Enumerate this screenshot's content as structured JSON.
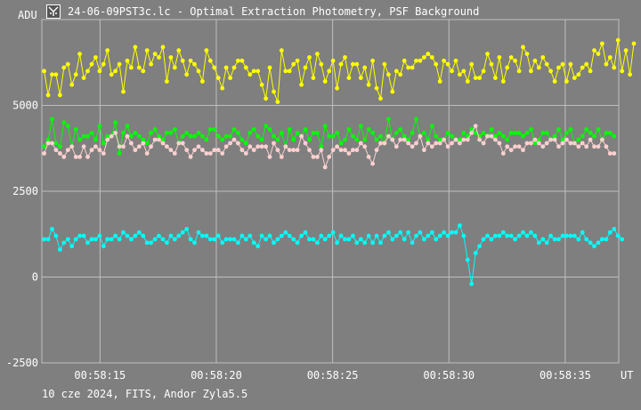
{
  "window": {
    "title": "24-06-09PST3c.lc - Optimal Extraction Photometry, PSF Background",
    "icon": "app-logo-icon"
  },
  "footer": {
    "text": "10 cze 2024, FITS, Andor Zyla5.5"
  },
  "colors": {
    "background": "#7f7f7f",
    "grid": "#bfbfbf",
    "text": "#ffffff",
    "series_yellow": "#ffff00",
    "series_green": "#00ff00",
    "series_pink": "#ffd0d0",
    "series_cyan": "#00ffff"
  },
  "chart_data": {
    "type": "line",
    "title": "24-06-09PST3c.lc - Optimal Extraction Photometry, PSF Background",
    "ylabel": "ADU",
    "xlabel": "UT",
    "ylim": [
      -2500,
      7500
    ],
    "xlim": [
      "00:58:12.5",
      "00:58:37.3"
    ],
    "yticks": [
      -2500,
      0,
      2500,
      5000
    ],
    "xticks": [
      "00:58:15",
      "00:58:20",
      "00:58:25",
      "00:58:30",
      "00:58:35"
    ],
    "grid": true,
    "x": {
      "start": "00:58:12.6",
      "end": "00:58:37.1",
      "count": 145
    },
    "series": [
      {
        "color": "#ffff00",
        "values": [
          6000,
          5300,
          5900,
          5900,
          5300,
          6100,
          6200,
          5600,
          5900,
          6500,
          5800,
          6000,
          6200,
          6400,
          6000,
          6200,
          6600,
          5900,
          6000,
          6200,
          5400,
          6300,
          6100,
          6700,
          6100,
          6000,
          6600,
          6200,
          6500,
          6400,
          6700,
          5700,
          6400,
          6100,
          6600,
          6300,
          5900,
          6300,
          6200,
          6000,
          5700,
          6600,
          6300,
          6100,
          5800,
          5500,
          6100,
          5800,
          6100,
          6300,
          6300,
          6100,
          5900,
          6000,
          6000,
          5600,
          5200,
          6100,
          5400,
          5100,
          6600,
          6000,
          6000,
          6200,
          6300,
          5600,
          6100,
          6400,
          5800,
          6500,
          6200,
          5700,
          6000,
          6300,
          5500,
          6200,
          6400,
          5800,
          6200,
          6200,
          5800,
          6100,
          5600,
          6300,
          5500,
          5200,
          6200,
          5900,
          5400,
          6000,
          5900,
          6300,
          6100,
          6100,
          6300,
          6300,
          6400,
          6500,
          6400,
          6200,
          5700,
          6300,
          6200,
          6000,
          6300,
          5900,
          6000,
          5700,
          6200,
          5800,
          5800,
          6000,
          6500,
          6200,
          5800,
          6400,
          5700,
          6100,
          6400,
          6300,
          6000,
          6700,
          6500,
          6000,
          6300,
          6100,
          6400,
          6200,
          6000,
          5700,
          6100,
          6200,
          5700,
          6200,
          5800,
          5900,
          6100,
          6200,
          6000,
          6600,
          6500,
          6800,
          6200,
          6400,
          6100,
          6900,
          6000,
          6600,
          5900,
          6800
        ]
      },
      {
        "color": "#00ff00",
        "values": [
          3800,
          4000,
          4600,
          3900,
          3800,
          4500,
          4400,
          3800,
          4300,
          4000,
          4100,
          4100,
          4200,
          4000,
          4400,
          3900,
          4100,
          4100,
          4500,
          3600,
          4200,
          4400,
          4100,
          4200,
          4100,
          4000,
          3900,
          4200,
          4300,
          4100,
          4000,
          4200,
          4200,
          4300,
          3900,
          4100,
          4200,
          4100,
          4100,
          4200,
          4100,
          4000,
          4300,
          4300,
          4100,
          4000,
          4100,
          4100,
          4300,
          4200,
          4000,
          3900,
          4200,
          4300,
          4100,
          4000,
          4400,
          4300,
          4100,
          4000,
          4200,
          3800,
          4300,
          4000,
          4200,
          4100,
          4300,
          4000,
          4200,
          4200,
          3800,
          4400,
          4100,
          4100,
          4200,
          3900,
          4000,
          4300,
          4100,
          4000,
          4400,
          4000,
          4300,
          4200,
          4000,
          4100,
          3900,
          4600,
          4000,
          4200,
          4300,
          4100,
          4000,
          4200,
          4600,
          4100,
          4200,
          4000,
          4400,
          4100,
          4000,
          4000,
          4200,
          4100,
          4000,
          4000,
          4200,
          4100,
          4300,
          4200,
          4100,
          4200,
          4100,
          4300,
          4100,
          4200,
          4100,
          4000,
          4200,
          4200,
          4200,
          4100,
          4200,
          4300,
          3900,
          4000,
          4200,
          4200,
          4000,
          4100,
          4300,
          4000,
          4200,
          4300,
          3900,
          4000,
          4100,
          4300,
          4200,
          4100,
          4300,
          4000,
          4200,
          4200,
          4100
        ]
      },
      {
        "color": "#ffd0d0",
        "values": [
          3600,
          3900,
          3900,
          3700,
          3600,
          3500,
          3700,
          3800,
          3500,
          3500,
          3800,
          3500,
          3700,
          3800,
          3700,
          3600,
          4000,
          4100,
          4200,
          3800,
          3800,
          4100,
          3900,
          3700,
          3800,
          3900,
          3600,
          3800,
          4000,
          4000,
          3900,
          3800,
          3700,
          3600,
          3900,
          3900,
          3700,
          3500,
          3700,
          3800,
          3700,
          3600,
          3600,
          3700,
          3700,
          3600,
          3800,
          3900,
          4000,
          3900,
          3700,
          3600,
          3800,
          3700,
          3800,
          3800,
          3800,
          3500,
          3900,
          3700,
          3500,
          3800,
          3700,
          3700,
          3700,
          4100,
          3900,
          3700,
          3500,
          3500,
          3700,
          3200,
          3500,
          3700,
          3800,
          3700,
          3700,
          3600,
          3700,
          3700,
          3900,
          3800,
          3500,
          3300,
          3700,
          3900,
          3900,
          4100,
          4000,
          3800,
          4000,
          4000,
          3900,
          3800,
          3900,
          4100,
          3700,
          3900,
          3800,
          3900,
          3900,
          4000,
          3800,
          3900,
          4000,
          3900,
          4000,
          4000,
          4200,
          4400,
          4000,
          3900,
          4100,
          4100,
          4000,
          3900,
          3600,
          3800,
          3700,
          3800,
          3800,
          3700,
          3900,
          3900,
          4000,
          3900,
          3800,
          3900,
          4000,
          4000,
          3800,
          3900,
          4000,
          3900,
          3900,
          3800,
          3900,
          3800,
          4000,
          3800,
          3800,
          4000,
          3800,
          3600,
          3600
        ]
      },
      {
        "color": "#00ffff",
        "values": [
          1100,
          1100,
          1400,
          1200,
          800,
          1000,
          1100,
          900,
          1100,
          1200,
          1200,
          1000,
          1100,
          1100,
          1200,
          900,
          1100,
          1100,
          1200,
          1100,
          1300,
          1200,
          1100,
          1200,
          1300,
          1200,
          1000,
          1000,
          1100,
          1200,
          1100,
          1000,
          1200,
          1100,
          1200,
          1300,
          1400,
          1100,
          1000,
          1300,
          1200,
          1200,
          1100,
          1100,
          1200,
          1000,
          1100,
          1100,
          1100,
          1000,
          1200,
          1100,
          1200,
          1000,
          900,
          1200,
          1100,
          1200,
          1000,
          1100,
          1200,
          1300,
          1200,
          1100,
          1000,
          1200,
          1300,
          1100,
          1100,
          1000,
          1200,
          1100,
          1200,
          1300,
          1000,
          1200,
          1100,
          1100,
          1200,
          1000,
          1100,
          1000,
          1200,
          1000,
          1200,
          1000,
          1200,
          1300,
          1100,
          1200,
          1300,
          1100,
          1300,
          1000,
          1200,
          1300,
          1100,
          1200,
          1300,
          1100,
          1200,
          1300,
          1200,
          1300,
          1300,
          1500,
          1200,
          500,
          -200,
          700,
          900,
          1100,
          1200,
          1100,
          1200,
          1200,
          1300,
          1200,
          1200,
          1100,
          1200,
          1300,
          1200,
          1300,
          1200,
          1000,
          1100,
          1000,
          1200,
          1100,
          1100,
          1200,
          1200,
          1200,
          1200,
          1100,
          1300,
          1100,
          1000,
          900,
          1000,
          1100,
          1100,
          1300,
          1400,
          1200,
          1100
        ]
      }
    ]
  }
}
